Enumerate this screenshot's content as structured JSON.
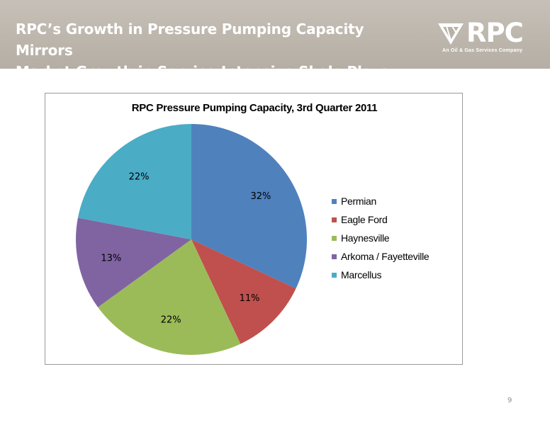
{
  "slide": {
    "title_line1": "RPC’s Growth in Pressure Pumping Capacity Mirrors",
    "title_line2": "Market Growth in Service-Intensive Shale Plays",
    "page_number": "9"
  },
  "logo": {
    "name": "RPC",
    "tagline": "An Oil & Gas Services Company"
  },
  "chart_data": {
    "type": "pie",
    "title": "RPC Pressure Pumping Capacity, 3rd Quarter 2011",
    "categories": [
      "Permian",
      "Eagle Ford",
      "Haynesville",
      "Arkoma / Fayetteville",
      "Marcellus"
    ],
    "values": [
      32,
      11,
      22,
      13,
      22
    ],
    "labels": [
      "32%",
      "11%",
      "22%",
      "13%",
      "22%"
    ],
    "colors": [
      "#4f81bd",
      "#c0504d",
      "#9bbb59",
      "#8064a2",
      "#4bacc6"
    ],
    "legend_position": "right",
    "start_angle": "12 o'clock, clockwise"
  }
}
